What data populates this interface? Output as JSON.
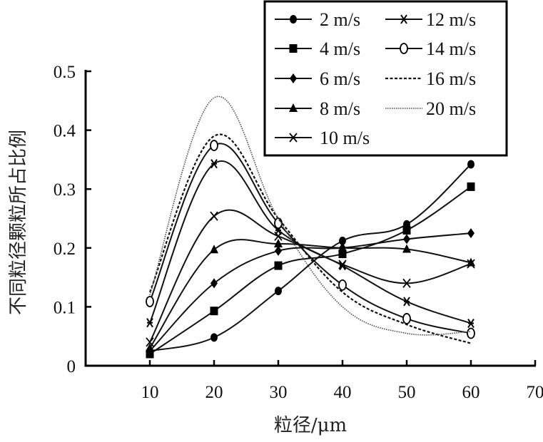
{
  "chart_data": {
    "type": "line",
    "title": "",
    "xlabel": "粒径/μm",
    "ylabel": "不同粒径颗粒所占比例",
    "xlim": [
      0,
      70
    ],
    "ylim": [
      0,
      0.5
    ],
    "xticks": [
      "10",
      "20",
      "30",
      "40",
      "50",
      "60",
      "70"
    ],
    "yticks": [
      "0",
      "0.1",
      "0.2",
      "0.3",
      "0.4",
      "0.5"
    ],
    "grid": false,
    "legend_position": "top-right",
    "x": [
      10,
      20,
      30,
      40,
      50,
      60
    ],
    "series": [
      {
        "name": "2 m/s",
        "marker": "circle",
        "line": "solid",
        "values": [
          0.025,
          0.048,
          0.127,
          0.212,
          0.24,
          0.342
        ]
      },
      {
        "name": "4 m/s",
        "marker": "square",
        "line": "solid",
        "values": [
          0.02,
          0.093,
          0.17,
          0.19,
          0.23,
          0.304
        ]
      },
      {
        "name": "6 m/s",
        "marker": "diamond",
        "line": "solid",
        "values": [
          0.025,
          0.14,
          0.195,
          0.2,
          0.215,
          0.225
        ]
      },
      {
        "name": "8 m/s",
        "marker": "triangle",
        "line": "solid",
        "values": [
          0.03,
          0.197,
          0.207,
          0.2,
          0.198,
          0.175
        ]
      },
      {
        "name": "10 m/s",
        "marker": "x",
        "line": "solid",
        "values": [
          0.04,
          0.254,
          0.22,
          0.172,
          0.14,
          0.173
        ]
      },
      {
        "name": "12 m/s",
        "marker": "star",
        "line": "solid",
        "values": [
          0.073,
          0.343,
          0.23,
          0.17,
          0.109,
          0.072
        ]
      },
      {
        "name": "14 m/s",
        "marker": "open-circle",
        "line": "solid",
        "values": [
          0.109,
          0.374,
          0.242,
          0.137,
          0.08,
          0.055
        ]
      },
      {
        "name": "16 m/s",
        "marker": "none",
        "line": "dashed",
        "values": [
          0.125,
          0.39,
          0.25,
          0.125,
          0.07,
          0.038
        ]
      },
      {
        "name": "20 m/s",
        "marker": "none",
        "line": "dotted",
        "values": [
          0.12,
          0.455,
          0.25,
          0.1,
          0.055,
          0.058
        ]
      }
    ]
  }
}
